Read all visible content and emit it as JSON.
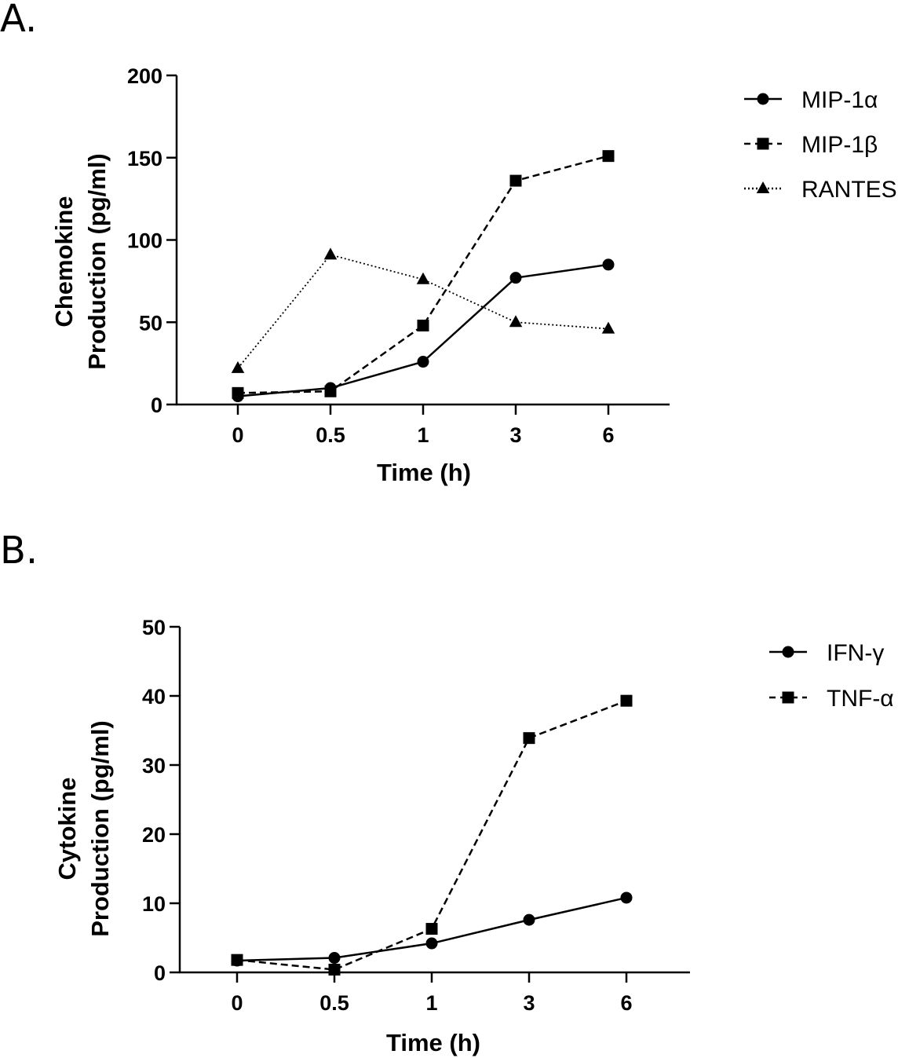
{
  "panels": [
    {
      "label": "A."
    },
    {
      "label": "B."
    }
  ],
  "chart_data": [
    {
      "type": "line",
      "panel": "A.",
      "categories": [
        "0",
        "0.5",
        "1",
        "3",
        "6"
      ],
      "xlabel": "Time (h)",
      "ylabel_lines": [
        "Chemokine",
        "Production (pg/ml)"
      ],
      "ylim": [
        0,
        200
      ],
      "yticks": [
        0,
        50,
        100,
        150,
        200
      ],
      "legend_position": "top-right",
      "series": [
        {
          "name": "MIP-1α",
          "marker": "circle",
          "line": "solid",
          "values": [
            5,
            10,
            26,
            77,
            85
          ]
        },
        {
          "name": "MIP-1β",
          "marker": "square",
          "line": "dashed",
          "values": [
            7,
            8,
            48,
            136,
            151
          ]
        },
        {
          "name": "RANTES",
          "marker": "triangle",
          "line": "dotted",
          "values": [
            22,
            91,
            76,
            50,
            46
          ]
        }
      ]
    },
    {
      "type": "line",
      "panel": "B.",
      "categories": [
        "0",
        "0.5",
        "1",
        "3",
        "6"
      ],
      "xlabel": "Time (h)",
      "ylabel_lines": [
        "Cytokine",
        "Production (pg/ml)"
      ],
      "ylim": [
        0,
        50
      ],
      "yticks": [
        0,
        10,
        20,
        30,
        40,
        50
      ],
      "legend_position": "top-right",
      "series": [
        {
          "name": "IFN-γ",
          "marker": "circle",
          "line": "solid",
          "values": [
            1.7,
            2.1,
            4.2,
            7.6,
            10.8
          ]
        },
        {
          "name": "TNF-α",
          "marker": "square",
          "line": "dashed",
          "values": [
            1.8,
            0.4,
            6.3,
            33.9,
            39.3
          ]
        }
      ]
    }
  ]
}
